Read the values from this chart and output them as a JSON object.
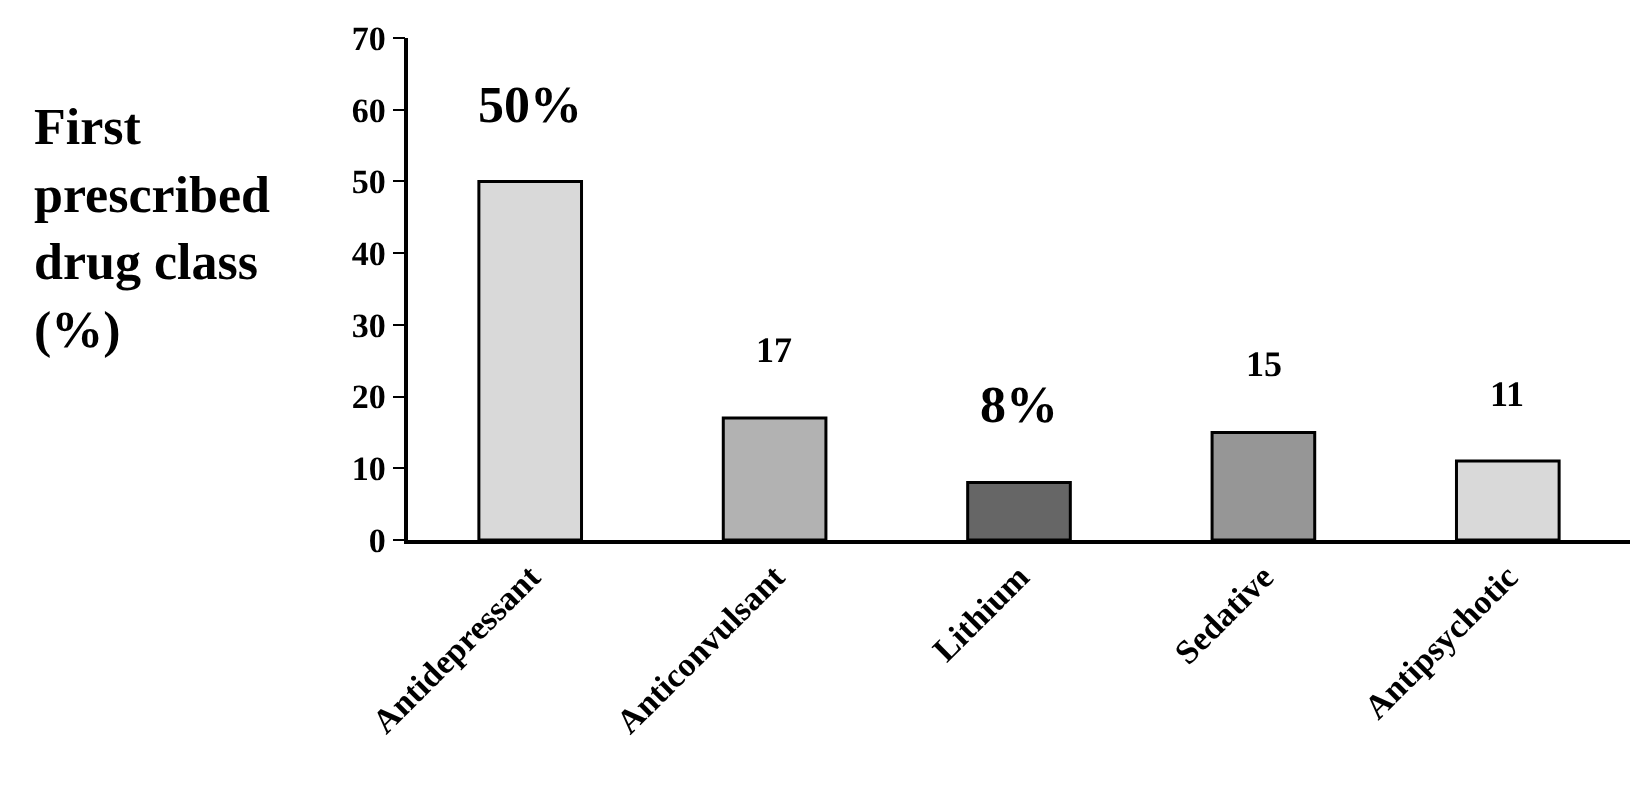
{
  "chart_data": {
    "type": "bar",
    "ylabel": "First prescribed drug class (%)",
    "categories": [
      "Antidepressant",
      "Anticonvulsant",
      "Lithium",
      "Sedative",
      "Antipsychotic"
    ],
    "values": [
      50,
      17,
      8,
      15,
      11
    ],
    "colors": [
      "#d9d9d9",
      "#b2b2b2",
      "#666666",
      "#969696",
      "#d9d9d9"
    ],
    "value_labels": [
      "50%",
      "17",
      "8%",
      "15",
      "11"
    ],
    "ylim": [
      0,
      70
    ],
    "yticks": [
      0,
      10,
      20,
      30,
      40,
      50,
      60,
      70
    ]
  }
}
